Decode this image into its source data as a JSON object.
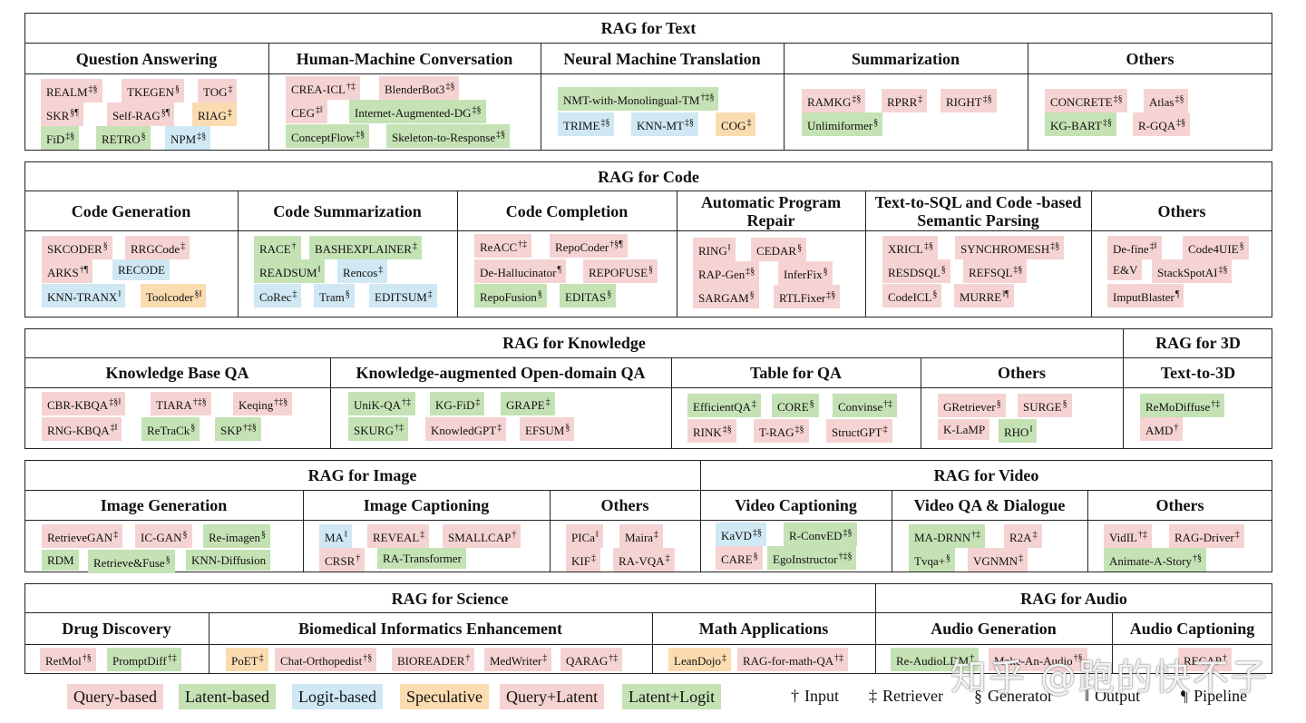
{
  "text": {
    "title": "RAG for Text",
    "cols": [
      "Question Answering",
      "Human-Machine Conversation",
      "Neural Machine Translation",
      "Summarization",
      "Others"
    ]
  },
  "code": {
    "title": "RAG for Code",
    "cols": [
      "Code Generation",
      "Code Summarization",
      "Code Completion",
      "Automatic Program Repair",
      "Text-to-SQL and Code -based Semantic Parsing",
      "Others"
    ]
  },
  "knowledge": {
    "title": "RAG for Knowledge",
    "cols": [
      "Knowledge Base QA",
      "Knowledge-augmented Open-domain QA",
      "Table for QA",
      "Others"
    ]
  },
  "three_d": {
    "title": "RAG for 3D",
    "cols": [
      "Text-to-3D"
    ]
  },
  "image": {
    "title": "RAG for Image",
    "cols": [
      "Image Generation",
      "Image Captioning",
      "Others"
    ]
  },
  "video": {
    "title": "RAG for Video",
    "cols": [
      "Video Captioning",
      "Video QA & Dialogue",
      "Others"
    ]
  },
  "science": {
    "title": "RAG for Science",
    "cols": [
      "Drug Discovery",
      "Biomedical Informatics Enhancement",
      "Math Applications"
    ]
  },
  "audio": {
    "title": "RAG for Audio",
    "cols": [
      "Audio Generation",
      "Audio Captioning"
    ]
  },
  "chips": {
    "qa": [
      {
        "n": "REALM",
        "m": "‡§",
        "c": "q"
      },
      {
        "n": "TKEGEN",
        "m": "§",
        "c": "q"
      },
      {
        "n": "TOG",
        "m": "‡",
        "c": "q"
      },
      {
        "n": "SKR",
        "m": "§¶",
        "c": "q"
      },
      {
        "n": "Self-RAG",
        "m": "§¶",
        "c": "q"
      },
      {
        "n": "RIAG",
        "m": "‡",
        "c": "s"
      },
      {
        "n": "FiD",
        "m": "‡§",
        "c": "l"
      },
      {
        "n": "RETRO",
        "m": "§",
        "c": "l"
      },
      {
        "n": "NPM",
        "m": "‡§",
        "c": "g"
      }
    ],
    "hmc": [
      {
        "n": "CREA-ICL",
        "m": "†‡",
        "c": "q"
      },
      {
        "n": "BlenderBot3",
        "m": "‡§",
        "c": "q"
      },
      {
        "n": "CEG",
        "m": "‡‖",
        "c": "q"
      },
      {
        "n": "Internet-Augmented-DG",
        "m": "‡§",
        "c": "l"
      },
      {
        "n": "ConceptFlow",
        "m": "‡§",
        "c": "l"
      },
      {
        "n": "Skeleton-to-Response",
        "m": "‡§",
        "c": "l"
      }
    ],
    "nmt": [
      {
        "n": "NMT-with-Monolingual-TM",
        "m": "†‡§",
        "c": "l"
      },
      {
        "n": "TRIME",
        "m": "‡§",
        "c": "g"
      },
      {
        "n": "KNN-MT",
        "m": "‡§",
        "c": "g"
      },
      {
        "n": "COG",
        "m": "‡",
        "c": "s"
      }
    ],
    "sum": [
      {
        "n": "RAMKG",
        "m": "‡§",
        "c": "q"
      },
      {
        "n": "RPRR",
        "m": "‡",
        "c": "q"
      },
      {
        "n": "RIGHT",
        "m": "‡§",
        "c": "q"
      },
      {
        "n": "Unlimiformer",
        "m": "§",
        "c": "l"
      }
    ],
    "txt_oth": [
      {
        "n": "CONCRETE",
        "m": "‡§",
        "c": "q"
      },
      {
        "n": "Atlas",
        "m": "‡§",
        "c": "q"
      },
      {
        "n": "KG-BART",
        "m": "‡§",
        "c": "l"
      },
      {
        "n": "R-GQA",
        "m": "‡§",
        "c": "q"
      }
    ],
    "cg": [
      {
        "n": "SKCODER",
        "m": "§",
        "c": "q"
      },
      {
        "n": "RRGCode",
        "m": "‡",
        "c": "q"
      },
      {
        "n": "ARKS",
        "m": "†¶",
        "c": "q"
      },
      {
        "n": "RECODE",
        "m": "",
        "c": "g"
      },
      {
        "n": "KNN-TRANX",
        "m": "‖",
        "c": "g"
      },
      {
        "n": "Toolcoder",
        "m": "§‖",
        "c": "s"
      }
    ],
    "cs": [
      {
        "n": "RACE",
        "m": "†",
        "c": "l"
      },
      {
        "n": "BASHEXPLAINER",
        "m": "‡",
        "c": "l"
      },
      {
        "n": "READSUM",
        "m": "‖",
        "c": "l"
      },
      {
        "n": "Rencos",
        "m": "‡",
        "c": "g"
      },
      {
        "n": "CoRec",
        "m": "‡",
        "c": "g"
      },
      {
        "n": "Tram",
        "m": "§",
        "c": "g"
      },
      {
        "n": "EDITSUM",
        "m": "‡",
        "c": "g"
      }
    ],
    "cc": [
      {
        "n": "ReACC",
        "m": "†‡",
        "c": "q"
      },
      {
        "n": "RepoCoder",
        "m": "†§¶",
        "c": "q"
      },
      {
        "n": "De-Hallucinator",
        "m": "¶",
        "c": "q"
      },
      {
        "n": "REPOFUSE",
        "m": "§",
        "c": "q"
      },
      {
        "n": "RepoFusion",
        "m": "§",
        "c": "l"
      },
      {
        "n": "EDITAS",
        "m": "§",
        "c": "l"
      }
    ],
    "apr": [
      {
        "n": "RING",
        "m": "‖",
        "c": "q"
      },
      {
        "n": "CEDAR",
        "m": "§",
        "c": "q"
      },
      {
        "n": "RAP-Gen",
        "m": "‡§",
        "c": "q"
      },
      {
        "n": "InferFix",
        "m": "§",
        "c": "q"
      },
      {
        "n": "SARGAM",
        "m": "§",
        "c": "q"
      },
      {
        "n": "RTLFixer",
        "m": "‡§",
        "c": "q"
      }
    ],
    "sql": [
      {
        "n": "XRICL",
        "m": "‡§",
        "c": "q"
      },
      {
        "n": "SYNCHROMESH",
        "m": "‡§",
        "c": "q"
      },
      {
        "n": "RESDSQL",
        "m": "§",
        "c": "q"
      },
      {
        "n": "REFSQL",
        "m": "‡§",
        "c": "q"
      },
      {
        "n": "CodeICL",
        "m": "§",
        "c": "q"
      },
      {
        "n": "MURRE",
        "m": "‖¶",
        "c": "q"
      }
    ],
    "code_oth": [
      {
        "n": "De-fine",
        "m": "‡‖",
        "c": "q"
      },
      {
        "n": "Code4UIE",
        "m": "§",
        "c": "q"
      },
      {
        "n": "E&V",
        "m": "",
        "c": "q"
      },
      {
        "n": "StackSpotAI",
        "m": "‡§",
        "c": "q"
      },
      {
        "n": "ImputBlaster",
        "m": "¶",
        "c": "q"
      }
    ],
    "kbqa": [
      {
        "n": "CBR-KBQA",
        "m": "‡§‖",
        "c": "q"
      },
      {
        "n": "TIARA",
        "m": "†‡§",
        "c": "q"
      },
      {
        "n": "Keqing",
        "m": "†‡§",
        "c": "q"
      },
      {
        "n": "RNG-KBQA",
        "m": "‡‖",
        "c": "q"
      },
      {
        "n": "ReTraCk",
        "m": "§",
        "c": "l"
      },
      {
        "n": "SKP",
        "m": "†‡§",
        "c": "l"
      }
    ],
    "odqa": [
      {
        "n": "UniK-QA",
        "m": "†‡",
        "c": "l"
      },
      {
        "n": "KG-FiD",
        "m": "‡",
        "c": "l"
      },
      {
        "n": "GRAPE",
        "m": "‡",
        "c": "l"
      },
      {
        "n": "SKURG",
        "m": "†‡",
        "c": "l"
      },
      {
        "n": "KnowledGPT",
        "m": "‡",
        "c": "q"
      },
      {
        "n": "EFSUM",
        "m": "§",
        "c": "q"
      }
    ],
    "tqa": [
      {
        "n": "EfficientQA",
        "m": "‡",
        "c": "l"
      },
      {
        "n": "CORE",
        "m": "§",
        "c": "l"
      },
      {
        "n": "Convinse",
        "m": "†‡",
        "c": "l"
      },
      {
        "n": "RINK",
        "m": "‡§",
        "c": "q"
      },
      {
        "n": "T-RAG",
        "m": "‡§",
        "c": "q"
      },
      {
        "n": "StructGPT",
        "m": "‡",
        "c": "q"
      }
    ],
    "kn_oth": [
      {
        "n": "GRetriever",
        "m": "§",
        "c": "q"
      },
      {
        "n": "SURGE",
        "m": "§",
        "c": "q"
      },
      {
        "n": "K-LaMP",
        "m": "",
        "c": "q"
      },
      {
        "n": "RHO",
        "m": "‖",
        "c": "l"
      }
    ],
    "t3d": [
      {
        "n": "ReMoDiffuse",
        "m": "†‡",
        "c": "l"
      },
      {
        "n": "AMD",
        "m": "†",
        "c": "q"
      }
    ],
    "ig": [
      {
        "n": "RetrieveGAN",
        "m": "‡",
        "c": "q"
      },
      {
        "n": "IC-GAN",
        "m": "§",
        "c": "q"
      },
      {
        "n": "Re-imagen",
        "m": "§",
        "c": "l"
      },
      {
        "n": "RDM",
        "m": "",
        "c": "l"
      },
      {
        "n": "Retrieve&Fuse",
        "m": "§",
        "c": "l"
      },
      {
        "n": "KNN-Diffusion",
        "m": "",
        "c": "l"
      }
    ],
    "ic": [
      {
        "n": "MA",
        "m": "‖",
        "c": "g"
      },
      {
        "n": "REVEAL",
        "m": "‡",
        "c": "q"
      },
      {
        "n": "SMALLCAP",
        "m": "†",
        "c": "q"
      },
      {
        "n": "CRSR",
        "m": "†",
        "c": "q"
      },
      {
        "n": "RA-Transformer",
        "m": "",
        "c": "l"
      }
    ],
    "img_oth": [
      {
        "n": "PICa",
        "m": "‖",
        "c": "q"
      },
      {
        "n": "Maira",
        "m": "‡",
        "c": "q"
      },
      {
        "n": "KIF",
        "m": "‡",
        "c": "q"
      },
      {
        "n": "RA-VQA",
        "m": "‡",
        "c": "q"
      }
    ],
    "vc": [
      {
        "n": "KaVD",
        "m": "‡§",
        "c": "g"
      },
      {
        "n": "R-ConvED",
        "m": "‡§",
        "c": "l"
      },
      {
        "n": "CARE",
        "m": "§",
        "c": "q"
      },
      {
        "n": "EgoInstructor",
        "m": "†‡§",
        "c": "l"
      }
    ],
    "vqa": [
      {
        "n": "MA-DRNN",
        "m": "†‡",
        "c": "l"
      },
      {
        "n": "R2A",
        "m": "‡",
        "c": "q"
      },
      {
        "n": "Tvqa+",
        "m": "§",
        "c": "l"
      },
      {
        "n": "VGNMN",
        "m": "‡",
        "c": "q"
      }
    ],
    "vid_oth": [
      {
        "n": "VidIL",
        "m": "†‡",
        "c": "q"
      },
      {
        "n": "RAG-Driver",
        "m": "‡",
        "c": "q"
      },
      {
        "n": "Animate-A-Story",
        "m": "†§",
        "c": "l"
      }
    ],
    "drug": [
      {
        "n": "RetMol",
        "m": "†§",
        "c": "q"
      },
      {
        "n": "PromptDiff",
        "m": "†‡",
        "c": "l"
      }
    ],
    "bio": [
      {
        "n": "PoET",
        "m": "‡",
        "c": "s"
      },
      {
        "n": "Chat-Orthopedist",
        "m": "†§",
        "c": "q"
      },
      {
        "n": "BIOREADER",
        "m": "†",
        "c": "q"
      },
      {
        "n": "MedWriter",
        "m": "‡",
        "c": "q"
      },
      {
        "n": "QARAG",
        "m": "†‡",
        "c": "q"
      }
    ],
    "math": [
      {
        "n": "LeanDojo",
        "m": "‡",
        "c": "s"
      },
      {
        "n": "RAG-for-math-QA",
        "m": "†‡",
        "c": "q"
      }
    ],
    "ag": [
      {
        "n": "Re-AudioLDM",
        "m": "†",
        "c": "l"
      },
      {
        "n": "Make-An-Audio",
        "m": "†§",
        "c": "q"
      }
    ],
    "ac": [
      {
        "n": "RECAP",
        "m": "†",
        "c": "q"
      }
    ]
  },
  "legend": {
    "types": [
      {
        "n": "Query-based",
        "c": "q"
      },
      {
        "n": "Latent-based",
        "c": "l"
      },
      {
        "n": "Logit-based",
        "c": "g"
      },
      {
        "n": "Speculative",
        "c": "s"
      },
      {
        "n": "Query+Latent",
        "c": "q"
      },
      {
        "n": "Latent+Logit",
        "c": "l"
      }
    ],
    "marks": [
      {
        "sym": "†",
        "label": "Input"
      },
      {
        "sym": "‡",
        "label": "Retriever"
      },
      {
        "sym": "§",
        "label": "Generator"
      },
      {
        "sym": "‖",
        "label": "Output"
      },
      {
        "sym": "¶",
        "label": "Pipeline"
      }
    ]
  },
  "watermark": "知乎 @跑的快不子",
  "colors": {
    "q": "#f6d3d3",
    "l": "#c5e2b5",
    "g": "#cfe8f3",
    "s": "#fbdcb0"
  }
}
